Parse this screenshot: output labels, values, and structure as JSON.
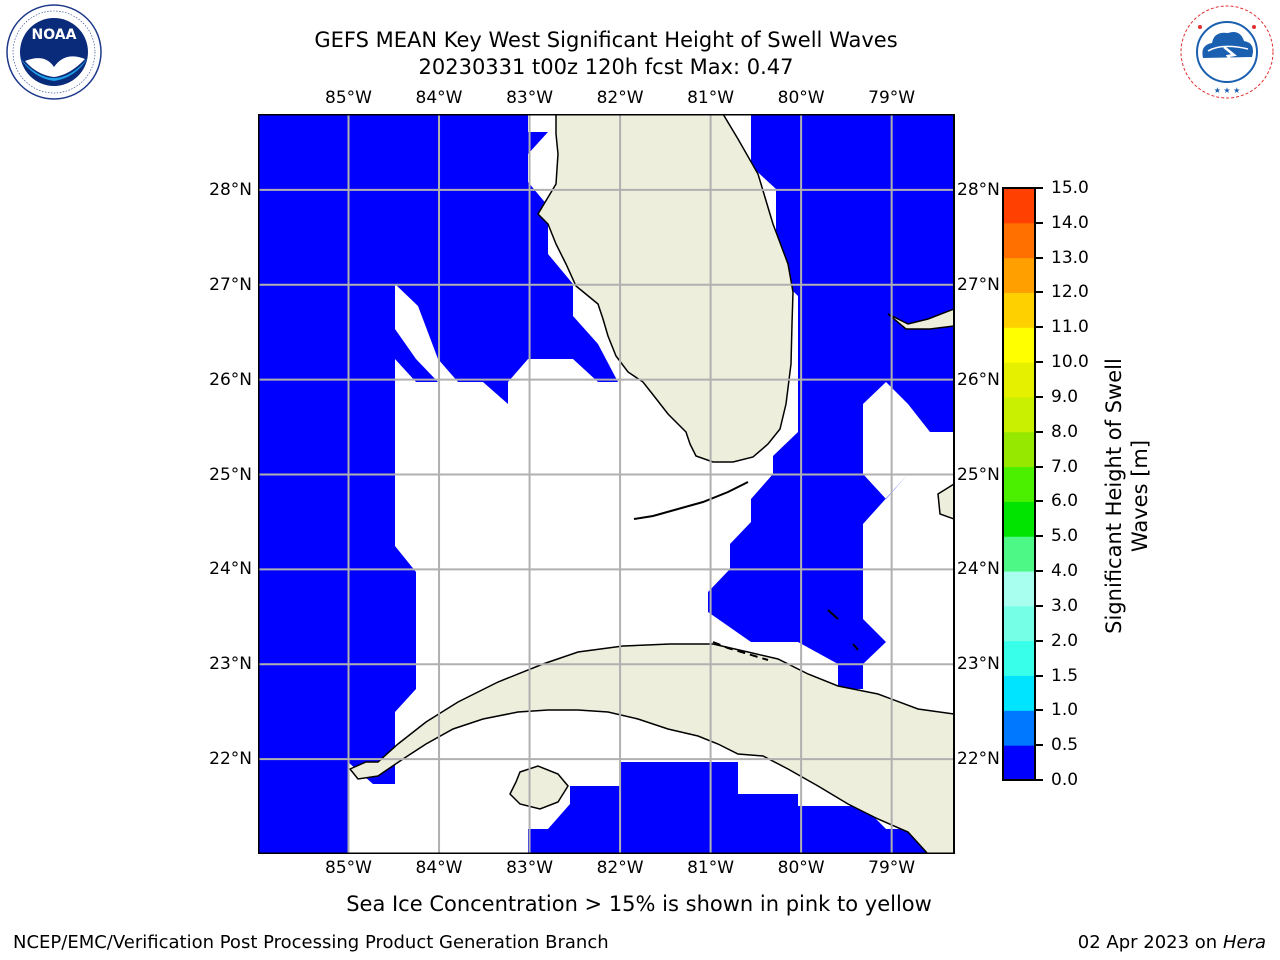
{
  "title": {
    "line1": "GEFS MEAN Key West Significant Height of Swell Waves",
    "line2": "20230331 t00z 120h fcst   Max: 0.47"
  },
  "logos": {
    "left": {
      "text": "NOAA",
      "ring_text": "NATIONAL OCEANIC AND ATMOSPHERIC ADMINISTRATION · U.S. DEPARTMENT OF COMMERCE",
      "icon": "noaa-logo"
    },
    "right": {
      "ring_text": "NATIONAL WEATHER SERVICE",
      "icon": "nws-logo"
    }
  },
  "map": {
    "longitude_ticks": [
      "85°W",
      "84°W",
      "83°W",
      "82°W",
      "81°W",
      "80°W",
      "79°W"
    ],
    "latitude_ticks": [
      "28°N",
      "27°N",
      "26°N",
      "25°N",
      "24°N",
      "23°N",
      "22°N"
    ],
    "lon_range": [
      -86.0,
      -78.3
    ],
    "lat_range": [
      21.0,
      28.8
    ],
    "colors": {
      "ocean": "#0000ff",
      "land": "#eeeedd",
      "no_data": "#ffffff",
      "grid": "#b0b0b0",
      "coast": "#000000"
    }
  },
  "colorbar": {
    "label_line1": "Significant Height of Swell",
    "label_line2": "Waves [m]",
    "ticks": [
      "0.0",
      "0.5",
      "1.0",
      "1.5",
      "2.0",
      "3.0",
      "4.0",
      "5.0",
      "6.0",
      "7.0",
      "8.0",
      "9.0",
      "10.0",
      "11.0",
      "12.0",
      "13.0",
      "14.0",
      "15.0"
    ],
    "colors": [
      "#0000ff",
      "#0078ff",
      "#00e4ff",
      "#38ffea",
      "#74ffe6",
      "#a8fff0",
      "#4ef886",
      "#00e400",
      "#4af000",
      "#96e800",
      "#c8f000",
      "#e4f000",
      "#ffff00",
      "#ffd000",
      "#ffa000",
      "#ff7000",
      "#ff4000",
      "#ff0000"
    ]
  },
  "sea_ice_note": "Sea Ice Concentration > 15% is shown in pink to yellow",
  "footer": {
    "left": "NCEP/EMC/Verification Post Processing Product Generation Branch",
    "date": "02 Apr 2023 on ",
    "host": "Hera"
  }
}
